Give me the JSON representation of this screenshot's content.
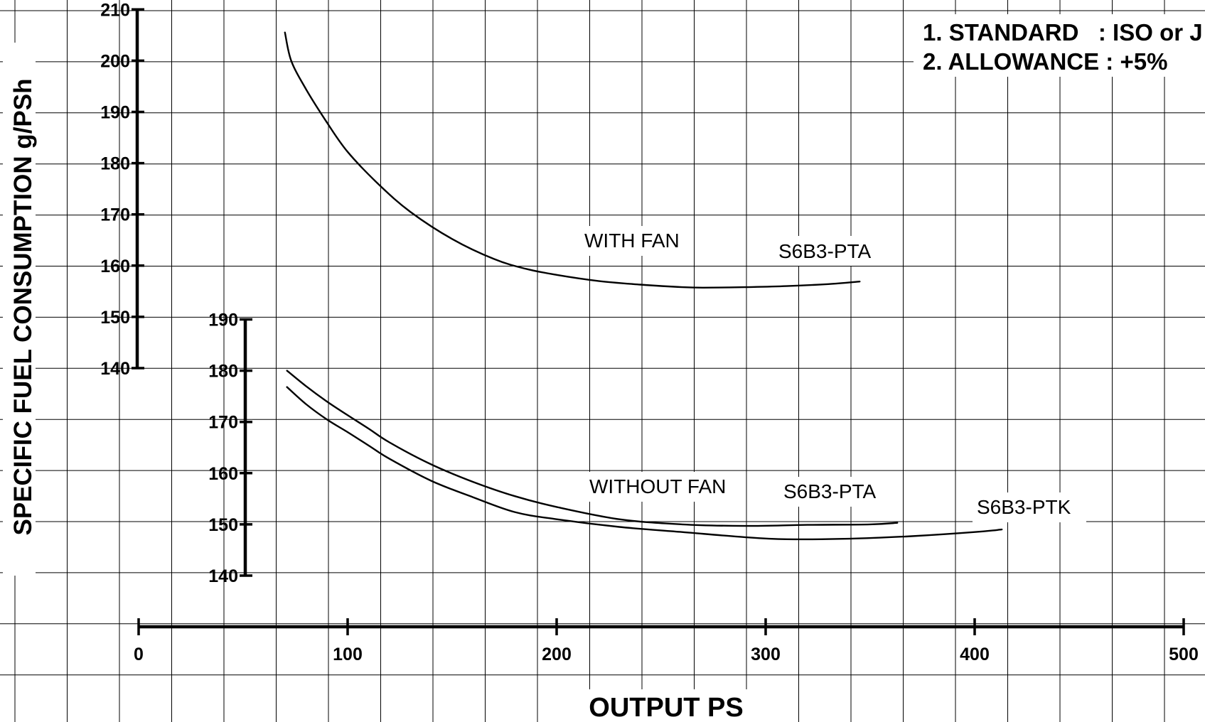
{
  "chart_data": {
    "type": "line",
    "xlabel": "OUTPUT PS",
    "ylabel": "SPECIFIC FUEL CONSUMPTION g/PSh",
    "x_axis": {
      "range": [
        0,
        500
      ],
      "ticks": [
        "0",
        "100",
        "200",
        "300",
        "400",
        "500"
      ]
    },
    "y_axes": [
      {
        "id": "upper",
        "range": [
          140,
          210
        ],
        "ticks": [
          "140",
          "150",
          "160",
          "170",
          "180",
          "190",
          "200",
          "210"
        ]
      },
      {
        "id": "lower",
        "range": [
          140,
          190
        ],
        "ticks": [
          "140",
          "150",
          "160",
          "170",
          "180",
          "190"
        ]
      }
    ],
    "grid": true,
    "notes": [
      "1. STANDARD   : ISO or J",
      "2. ALLOWANCE : +5%"
    ],
    "group_labels": [
      "WITH FAN",
      "WITHOUT FAN"
    ],
    "series": [
      {
        "name": "S6B3-PTA",
        "group": "WITH FAN",
        "axis": "upper",
        "x": [
          70,
          73,
          80,
          90,
          100,
          115,
          130,
          150,
          170,
          185,
          200,
          220,
          240,
          260,
          270,
          290,
          310,
          330,
          345
        ],
        "y": [
          205.5,
          200,
          194.5,
          188,
          182.2,
          175.8,
          170.5,
          165.2,
          161.3,
          159.4,
          158.2,
          157,
          156.3,
          155.8,
          155.7,
          155.8,
          156,
          156.4,
          156.9
        ]
      },
      {
        "name": "S6B3-PTA",
        "group": "WITHOUT FAN",
        "axis": "lower",
        "x": [
          71,
          80,
          90,
          100,
          110,
          120,
          140,
          160,
          180,
          200,
          230,
          260,
          290,
          320,
          350,
          363
        ],
        "y": [
          180,
          177,
          174,
          171.3,
          168.7,
          166,
          161.7,
          158.3,
          155.5,
          153.4,
          151,
          150,
          149.7,
          149.9,
          150,
          150.3
        ]
      },
      {
        "name": "S6B3-PTK",
        "group": "WITHOUT FAN",
        "axis": "lower",
        "x": [
          71,
          80,
          90,
          100,
          110,
          120,
          140,
          160,
          180,
          200,
          230,
          260,
          290,
          310,
          340,
          370,
          400,
          413
        ],
        "y": [
          176.8,
          173.5,
          170.5,
          168,
          165.4,
          162.8,
          158.5,
          155.3,
          152.4,
          151,
          149.5,
          148.5,
          147.5,
          147.1,
          147.2,
          147.7,
          148.5,
          149
        ]
      }
    ]
  }
}
